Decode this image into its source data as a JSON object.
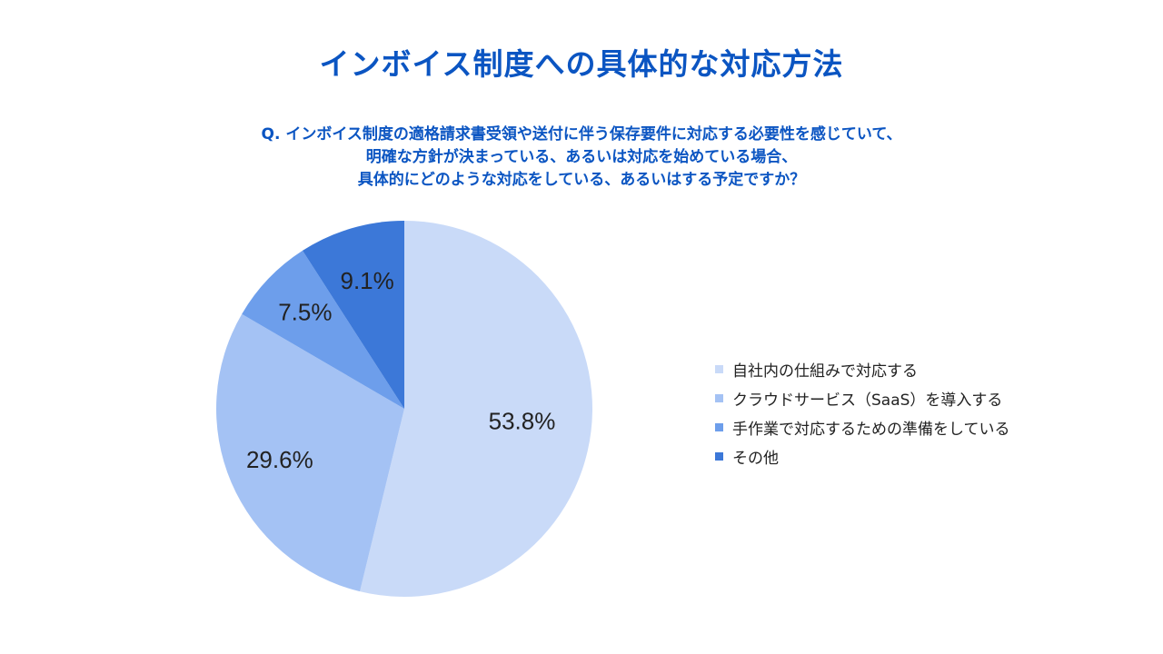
{
  "title": "インボイス制度への具体的な対応方法",
  "question_lines": [
    "Q. インボイス制度の適格請求書受領や送付に伴う保存要件に対応する必要性を感じていて、",
    "明確な方針が決まっている、あるいは対応を始めている場合、",
    "具体的にどのような対応をしている、あるいはする予定ですか？"
  ],
  "chart_data": {
    "type": "pie",
    "slices": [
      {
        "label": "自社内の仕組みで対応する",
        "value": 53.8,
        "value_label": "53.8%",
        "color": "#c9daf8"
      },
      {
        "label": "クラウドサービス（SaaS）を導入する",
        "value": 29.6,
        "value_label": "29.6%",
        "color": "#a4c2f4"
      },
      {
        "label": "手作業で対応するための準備をしている",
        "value": 7.5,
        "value_label": "7.5%",
        "color": "#6d9eeb"
      },
      {
        "label": "その他",
        "value": 9.1,
        "value_label": "9.1%",
        "color": "#3c78d8"
      }
    ],
    "legend_position": "right"
  }
}
